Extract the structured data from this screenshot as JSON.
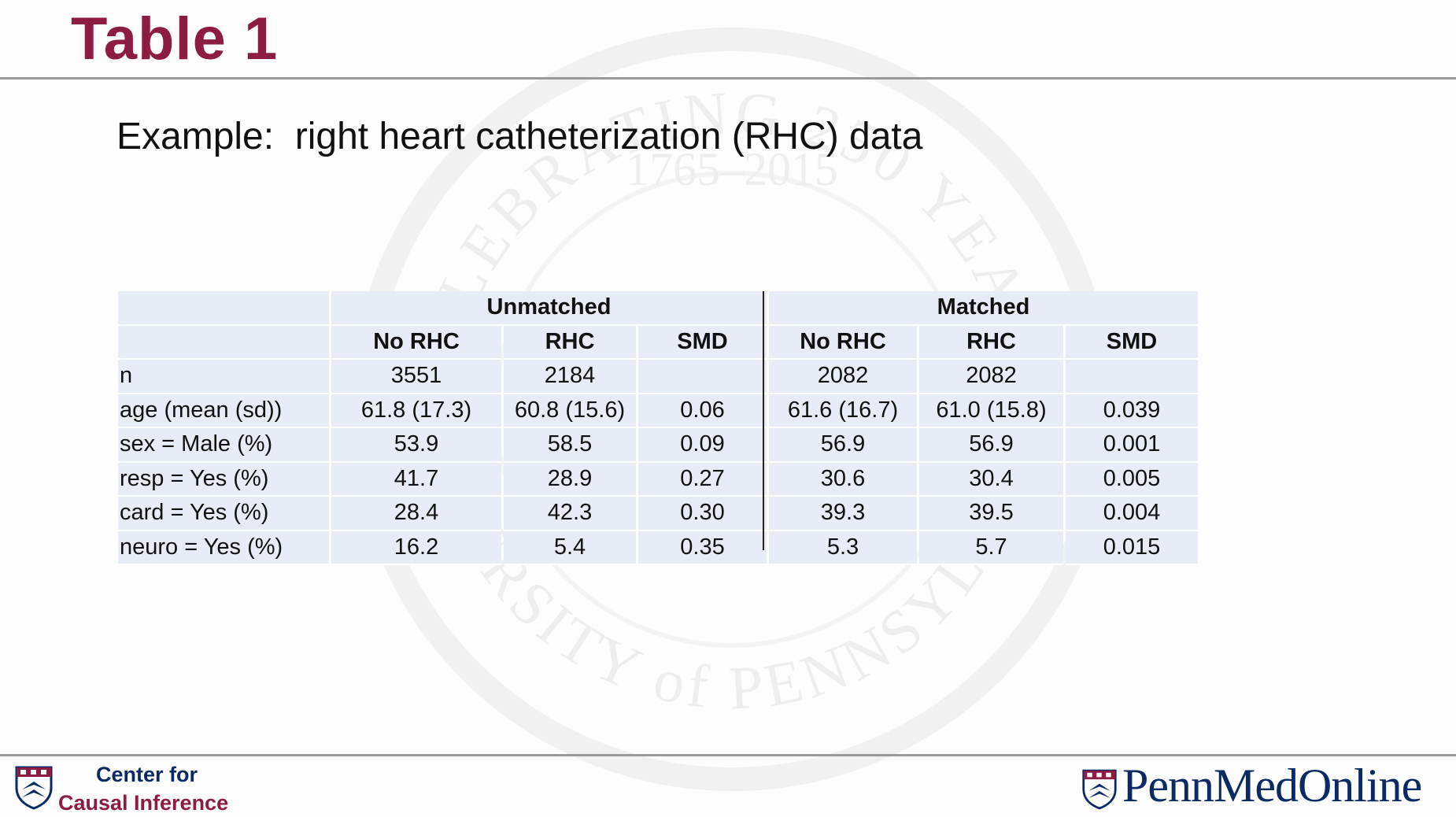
{
  "slide": {
    "title": "Table 1",
    "subtitle": "Example:  right heart catheterization (RHC) data"
  },
  "table": {
    "groups": [
      "Unmatched",
      "Matched"
    ],
    "columns": [
      "No RHC",
      "RHC",
      "SMD",
      "No RHC",
      "RHC",
      "SMD"
    ],
    "rows": [
      {
        "label": "n",
        "cells": [
          "3551",
          "2184",
          "",
          "2082",
          "2082",
          ""
        ]
      },
      {
        "label": "age (mean (sd))",
        "cells": [
          "61.8 (17.3)",
          "60.8 (15.6)",
          "0.06",
          "61.6 (16.7)",
          "61.0 (15.8)",
          "0.039"
        ]
      },
      {
        "label": "sex = Male (%)",
        "cells": [
          "53.9",
          "58.5",
          "0.09",
          "56.9",
          "56.9",
          "0.001"
        ]
      },
      {
        "label": "resp = Yes (%)",
        "cells": [
          "41.7",
          "28.9",
          "0.27",
          "30.6",
          "30.4",
          "0.005"
        ]
      },
      {
        "label": "card = Yes (%)",
        "cells": [
          "28.4",
          "42.3",
          "0.30",
          "39.3",
          "39.5",
          "0.004"
        ]
      },
      {
        "label": "neuro = Yes (%)",
        "cells": [
          "16.2",
          "5.4",
          "0.35",
          "5.3",
          "5.7",
          "0.015"
        ]
      }
    ]
  },
  "footer": {
    "left_logo_icon": "penn-shield-icon",
    "left_line1": "Center for",
    "left_line2": "Causal Inference",
    "right_logo_icon": "penn-shield-icon",
    "right_text": "PennMedOnline"
  },
  "watermark": {
    "text_top": "CELEBRATING 250 YEARS",
    "years": "1765–2015",
    "text_bottom": "UNIVERSITY of PENNSYLVANIA"
  },
  "colors": {
    "title": "#8c1d40",
    "penn_blue": "#0b2a63",
    "table_bg": "#e7ecf6"
  }
}
